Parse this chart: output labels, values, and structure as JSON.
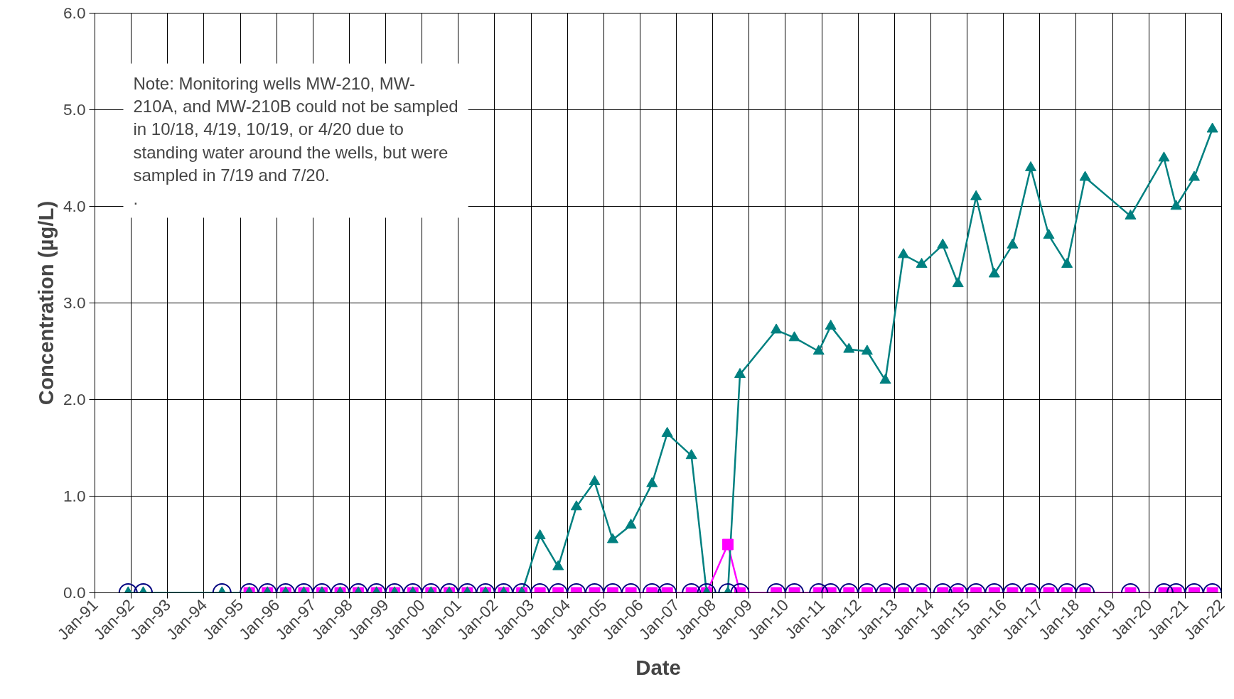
{
  "chart_data": {
    "type": "line",
    "xlabel": "Date",
    "ylabel": "Concentration (µg/L)",
    "x": [
      "1991-12",
      "1992-05",
      "1994-07",
      "1995-04",
      "1995-10",
      "1996-04",
      "1996-10",
      "1997-04",
      "1997-10",
      "1998-04",
      "1998-10",
      "1999-04",
      "1999-10",
      "2000-04",
      "2000-10",
      "2001-04",
      "2001-10",
      "2002-04",
      "2002-10",
      "2003-04",
      "2003-10",
      "2004-04",
      "2004-10",
      "2005-04",
      "2005-10",
      "2006-05",
      "2006-10",
      "2007-06",
      "2007-11",
      "2008-06",
      "2008-10",
      "2009-10",
      "2010-04",
      "2010-12",
      "2011-04",
      "2011-10",
      "2012-04",
      "2012-10",
      "2013-04",
      "2013-10",
      "2014-05",
      "2014-10",
      "2015-04",
      "2015-10",
      "2016-04",
      "2016-10",
      "2017-04",
      "2017-10",
      "2018-04",
      "2019-07",
      "2020-06",
      "2020-10",
      "2021-04",
      "2021-10"
    ],
    "series": [
      {
        "color": "#ff00ff",
        "marker": "square",
        "values": [
          null,
          null,
          null,
          0,
          0,
          0,
          0,
          0,
          0,
          0,
          0,
          0,
          0,
          0,
          0,
          0,
          0,
          0,
          0,
          0,
          0,
          0,
          0,
          0,
          0,
          0,
          0,
          0,
          0,
          0.5,
          0,
          0,
          0,
          0,
          0,
          0,
          0,
          0,
          0,
          0,
          0,
          0,
          0,
          0,
          0,
          0,
          0,
          0,
          0,
          0,
          0,
          0,
          0,
          0
        ]
      },
      {
        "type": "scatter",
        "color": "#000080",
        "marker": "circle",
        "values": [
          0,
          0,
          0,
          0,
          0,
          0,
          0,
          0,
          0,
          0,
          0,
          0,
          0,
          0,
          0,
          0,
          0,
          0,
          0,
          0,
          0,
          0,
          0,
          0,
          0,
          0,
          0,
          0,
          0,
          0,
          0,
          0,
          0,
          0,
          0,
          0,
          0,
          0,
          0,
          0,
          0,
          0,
          0,
          0,
          0,
          0,
          0,
          0,
          0,
          0,
          0,
          0,
          0,
          0
        ]
      },
      {
        "color": "#008080",
        "marker": "triangle",
        "values": [
          0,
          0,
          0,
          0,
          0,
          0,
          0,
          0,
          0,
          0,
          0,
          0,
          0,
          0,
          0,
          0,
          0,
          0,
          0,
          0.59,
          0.27,
          0.89,
          1.15,
          0.55,
          0.7,
          1.13,
          1.65,
          1.42,
          0,
          0,
          2.26,
          2.72,
          2.64,
          2.5,
          2.76,
          2.52,
          2.5,
          2.2,
          3.5,
          3.4,
          3.6,
          3.2,
          4.1,
          3.3,
          3.6,
          4.4,
          3.7,
          3.4,
          4.3,
          3.9,
          4.5,
          4.0,
          4.3,
          4.8
        ]
      }
    ],
    "xlim": [
      "1991-01",
      "2022-01"
    ],
    "xticks": [
      {
        "value": "1991-01",
        "label": "Jan-91"
      },
      {
        "value": "1992-01",
        "label": "Jan-92"
      },
      {
        "value": "1993-01",
        "label": "Jan-93"
      },
      {
        "value": "1994-01",
        "label": "Jan-94"
      },
      {
        "value": "1995-01",
        "label": "Jan-95"
      },
      {
        "value": "1996-01",
        "label": "Jan-96"
      },
      {
        "value": "1997-01",
        "label": "Jan-97"
      },
      {
        "value": "1998-01",
        "label": "Jan-98"
      },
      {
        "value": "1999-01",
        "label": "Jan-99"
      },
      {
        "value": "2000-01",
        "label": "Jan-00"
      },
      {
        "value": "2001-01",
        "label": "Jan-01"
      },
      {
        "value": "2002-01",
        "label": "Jan-02"
      },
      {
        "value": "2003-01",
        "label": "Jan-03"
      },
      {
        "value": "2004-01",
        "label": "Jan-04"
      },
      {
        "value": "2005-01",
        "label": "Jan-05"
      },
      {
        "value": "2006-01",
        "label": "Jan-06"
      },
      {
        "value": "2007-01",
        "label": "Jan-07"
      },
      {
        "value": "2008-01",
        "label": "Jan-08"
      },
      {
        "value": "2009-01",
        "label": "Jan-09"
      },
      {
        "value": "2010-01",
        "label": "Jan-10"
      },
      {
        "value": "2011-01",
        "label": "Jan-11"
      },
      {
        "value": "2012-01",
        "label": "Jan-12"
      },
      {
        "value": "2013-01",
        "label": "Jan-13"
      },
      {
        "value": "2014-01",
        "label": "Jan-14"
      },
      {
        "value": "2015-01",
        "label": "Jan-15"
      },
      {
        "value": "2016-01",
        "label": "Jan-16"
      },
      {
        "value": "2017-01",
        "label": "Jan-17"
      },
      {
        "value": "2018-01",
        "label": "Jan-18"
      },
      {
        "value": "2019-01",
        "label": "Jan-19"
      },
      {
        "value": "2020-01",
        "label": "Jan-20"
      },
      {
        "value": "2021-01",
        "label": "Jan-21"
      },
      {
        "value": "2022-01",
        "label": "Jan-22"
      }
    ],
    "ylim": [
      0,
      6
    ],
    "yticks": [
      {
        "value": 0,
        "label": "0.0"
      },
      {
        "value": 1,
        "label": "1.0"
      },
      {
        "value": 2,
        "label": "2.0"
      },
      {
        "value": 3,
        "label": "3.0"
      },
      {
        "value": 4,
        "label": "4.0"
      },
      {
        "value": 5,
        "label": "5.0"
      },
      {
        "value": 6,
        "label": "6.0"
      }
    ],
    "grid": true,
    "line_style": "solid",
    "annotations": [
      "Note: Monitoring wells MW-210, MW-\n210A, and MW-210B could not be sampled\nin 10/18, 4/19, 10/19, or 4/20 due to\nstanding water around the wells, but were\nsampled in 7/19 and 7/20.\n."
    ]
  }
}
